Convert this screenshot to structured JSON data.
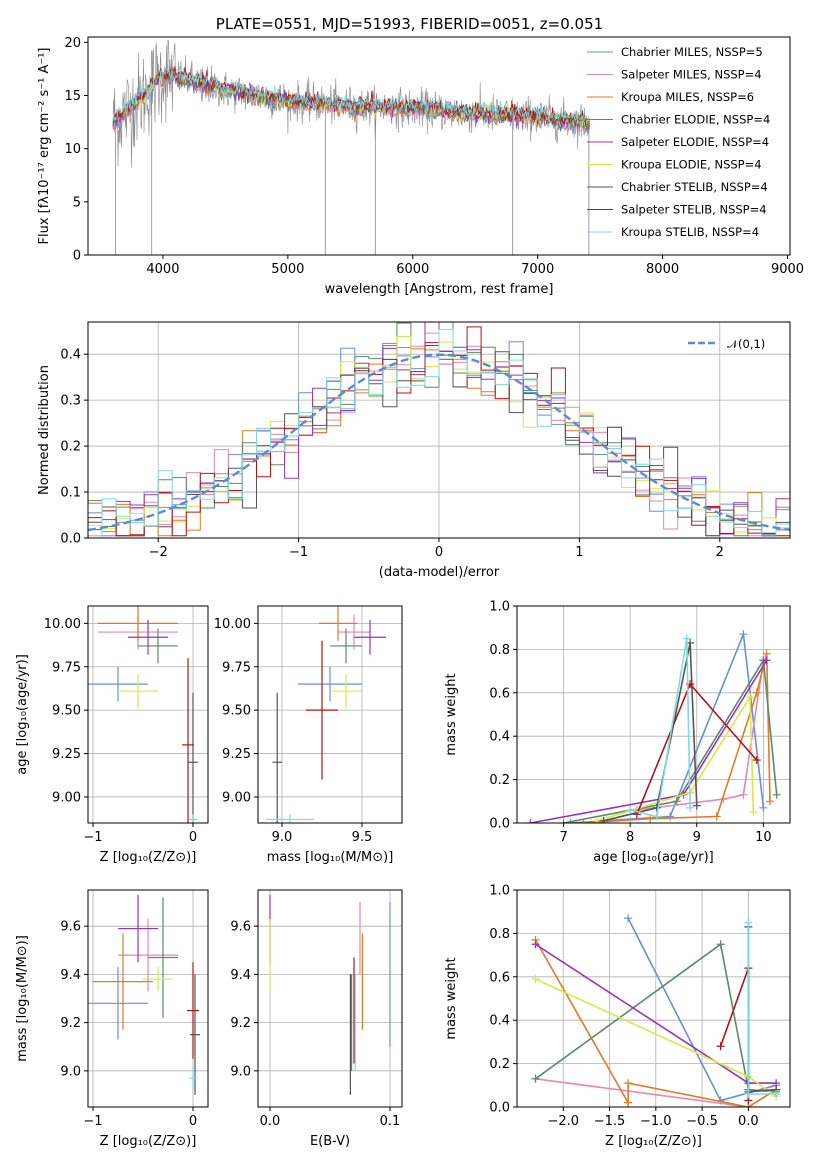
{
  "title": "PLATE=0551, MJD=51993, FIBERID=0051, z=0.051",
  "colors": {
    "Chabrier MILES": "#6a8fd6",
    "Salpeter MILES": "#e887b0",
    "Kroupa MILES": "#e07b27",
    "Chabrier ELODIE": "#5a8a6a",
    "Salpeter ELODIE": "#9933bb",
    "Kroupa ELODIE": "#d4e84a",
    "Chabrier STELIB": "#555555",
    "Salpeter STELIB": "#b01515",
    "Kroupa STELIB": "#7fd9e0",
    "data": "#888888",
    "normal": "#5b8bd6"
  },
  "chart_data": [
    {
      "id": "spectrum",
      "type": "line",
      "title": "PLATE=0551, MJD=51993, FIBERID=0051, z=0.051",
      "xlabel": "wavelength [Angstrom, rest frame]",
      "ylabel": "Flux [fλ10⁻¹⁷ erg cm⁻² s⁻¹ A⁻¹]",
      "xlim": [
        3400,
        9020
      ],
      "ylim": [
        0,
        20.5
      ],
      "xticks": [
        "4000",
        "5000",
        "6000",
        "7000",
        "8000",
        "9000"
      ],
      "yticks": [
        "0",
        "5",
        "10",
        "15",
        "20"
      ],
      "legend": [
        "Chabrier MILES, NSSP=5",
        "Salpeter MILES, NSSP=4",
        "Kroupa MILES, NSSP=6",
        "Chabrier ELODIE, NSSP=4",
        "Salpeter ELODIE, NSSP=4",
        "Kroupa ELODIE, NSSP=4",
        "Chabrier STELIB, NSSP=4",
        "Salpeter STELIB, NSSP=4",
        "Kroupa STELIB, NSSP=4"
      ],
      "legend_position": "top-right",
      "data_range": [
        3600,
        7420
      ],
      "continuum": {
        "x": [
          3600,
          3800,
          4000,
          4200,
          4500,
          5000,
          5500,
          6000,
          6500,
          7000,
          7420
        ],
        "y": [
          12.5,
          14.5,
          17.0,
          16.5,
          15.5,
          14.5,
          14.0,
          13.8,
          13.3,
          13.0,
          12.4
        ]
      },
      "grid": false
    },
    {
      "id": "residuals",
      "type": "histogram",
      "xlabel": "(data-model)/error",
      "ylabel": "Normed distribution",
      "xlim": [
        -2.5,
        2.5
      ],
      "ylim": [
        0,
        0.47
      ],
      "xticks": [
        "−2",
        "−1",
        "0",
        "1",
        "2"
      ],
      "yticks": [
        "0.0",
        "0.1",
        "0.2",
        "0.3",
        "0.4"
      ],
      "legend": [
        "𝒩(0,1)"
      ],
      "legend_position": "top-right",
      "grid": true,
      "bin_width": 0.1
    },
    {
      "id": "age-vs-Z",
      "type": "errorbar",
      "xlabel": "Z [log₁₀(Z/Z⊙)]",
      "ylabel": "age  [log₁₀(age/yr)]",
      "xlim": [
        -1.05,
        0.15
      ],
      "ylim": [
        8.85,
        10.1
      ],
      "xticks": [
        "−1",
        "0"
      ],
      "yticks": [
        "9.00",
        "9.25",
        "9.50",
        "9.75",
        "10.00"
      ],
      "grid": true,
      "points": [
        {
          "series": "Chabrier MILES",
          "x": -0.75,
          "xerr": 0.3,
          "y": 9.65,
          "yerr": 0.1
        },
        {
          "series": "Salpeter MILES",
          "x": -0.55,
          "xerr": 0.4,
          "y": 9.95,
          "yerr": 0.1
        },
        {
          "series": "Kroupa MILES",
          "x": -0.55,
          "xerr": 0.4,
          "y": 10.0,
          "yerr": 0.1
        },
        {
          "series": "Chabrier ELODIE",
          "x": -0.35,
          "xerr": 0.2,
          "y": 9.87,
          "yerr": 0.1
        },
        {
          "series": "Salpeter ELODIE",
          "x": -0.45,
          "xerr": 0.2,
          "y": 9.92,
          "yerr": 0.1
        },
        {
          "series": "Kroupa ELODIE",
          "x": -0.55,
          "xerr": 0.2,
          "y": 9.61,
          "yerr": 0.1
        },
        {
          "series": "Chabrier STELIB",
          "x": 0.0,
          "xerr": 0.05,
          "y": 9.2,
          "yerr": 0.4
        },
        {
          "series": "Salpeter STELIB",
          "x": -0.05,
          "xerr": 0.06,
          "y": 9.3,
          "yerr": 0.5
        },
        {
          "series": "Kroupa STELIB",
          "x": 0.0,
          "xerr": 0.04,
          "y": 8.87,
          "yerr": 0.03
        }
      ]
    },
    {
      "id": "age-vs-mass",
      "type": "errorbar",
      "xlabel": "mass [log₁₀(M/M⊙)]",
      "ylabel": "",
      "xlim": [
        8.85,
        9.75
      ],
      "ylim": [
        8.85,
        10.1
      ],
      "xticks": [
        "9.0",
        "9.5"
      ],
      "yticks": [
        "9.00",
        "9.25",
        "9.50",
        "9.75",
        "10.00"
      ],
      "grid": true,
      "points": [
        {
          "series": "Chabrier MILES",
          "x": 9.3,
          "xerr": 0.2,
          "y": 9.65,
          "yerr": 0.1
        },
        {
          "series": "Salpeter MILES",
          "x": 9.45,
          "xerr": 0.1,
          "y": 9.95,
          "yerr": 0.1
        },
        {
          "series": "Kroupa MILES",
          "x": 9.35,
          "xerr": 0.12,
          "y": 10.0,
          "yerr": 0.1
        },
        {
          "series": "Chabrier ELODIE",
          "x": 9.4,
          "xerr": 0.1,
          "y": 9.87,
          "yerr": 0.1
        },
        {
          "series": "Salpeter ELODIE",
          "x": 9.55,
          "xerr": 0.1,
          "y": 9.92,
          "yerr": 0.1
        },
        {
          "series": "Kroupa ELODIE",
          "x": 9.4,
          "xerr": 0.1,
          "y": 9.61,
          "yerr": 0.1
        },
        {
          "series": "Chabrier STELIB",
          "x": 8.97,
          "xerr": 0.03,
          "y": 9.2,
          "yerr": 0.4
        },
        {
          "series": "Salpeter STELIB",
          "x": 9.25,
          "xerr": 0.1,
          "y": 9.5,
          "yerr": 0.4
        },
        {
          "series": "Kroupa STELIB",
          "x": 9.05,
          "xerr": 0.15,
          "y": 8.87,
          "yerr": 0.03
        }
      ]
    },
    {
      "id": "weight-vs-age",
      "type": "line",
      "xlabel": "age  [log₁₀(age/yr)]",
      "ylabel": "mass weight",
      "xlim": [
        6.3,
        10.4
      ],
      "ylim": [
        0,
        1
      ],
      "xticks": [
        "7",
        "8",
        "9",
        "10"
      ],
      "yticks": [
        "0.0",
        "0.2",
        "0.4",
        "0.6",
        "0.8",
        "1.0"
      ],
      "grid": true,
      "series": [
        {
          "name": "Chabrier MILES",
          "x": [
            7.1,
            8.6,
            9.7,
            10.0
          ],
          "y": [
            0.0,
            0.03,
            0.87,
            0.07
          ]
        },
        {
          "name": "Salpeter MILES",
          "x": [
            8.1,
            9.4,
            9.7,
            10.0
          ],
          "y": [
            0.06,
            0.11,
            0.13,
            0.75
          ]
        },
        {
          "name": "Kroupa MILES",
          "x": [
            7.3,
            8.3,
            9.3,
            9.9,
            10.05,
            10.1
          ],
          "y": [
            0.0,
            0.02,
            0.03,
            0.6,
            0.78,
            0.1
          ]
        },
        {
          "name": "Chabrier ELODIE",
          "x": [
            7.0,
            8.7,
            10.0,
            10.2
          ],
          "y": [
            0.0,
            0.1,
            0.75,
            0.13
          ]
        },
        {
          "name": "Salpeter ELODIE",
          "x": [
            6.5,
            8.8,
            10.05
          ],
          "y": [
            0.0,
            0.13,
            0.75
          ]
        },
        {
          "name": "Kroupa ELODIE",
          "x": [
            7.5,
            8.9,
            9.8,
            9.85
          ],
          "y": [
            0.01,
            0.14,
            0.58,
            0.05
          ]
        },
        {
          "name": "Chabrier STELIB",
          "x": [
            7.6,
            8.4,
            8.9,
            9.0
          ],
          "y": [
            0.01,
            0.07,
            0.83,
            0.08
          ]
        },
        {
          "name": "Salpeter STELIB",
          "x": [
            8.1,
            8.9,
            9.9
          ],
          "y": [
            0.04,
            0.64,
            0.29
          ]
        },
        {
          "name": "Kroupa STELIB",
          "x": [
            8.0,
            8.4,
            8.85,
            8.9
          ],
          "y": [
            0.06,
            0.03,
            0.85,
            0.07
          ]
        }
      ]
    },
    {
      "id": "mass-vs-Z",
      "type": "errorbar",
      "xlabel": "Z [log₁₀(Z/Z⊙)]",
      "ylabel": "mass [log₁₀(M/M⊙)]",
      "xlim": [
        -1.05,
        0.15
      ],
      "ylim": [
        8.85,
        9.75
      ],
      "xticks": [
        "−1",
        "0"
      ],
      "yticks": [
        "9.0",
        "9.2",
        "9.4",
        "9.6"
      ],
      "grid": true,
      "points": [
        {
          "series": "Chabrier MILES",
          "x": -0.75,
          "xerr": 0.3,
          "y": 9.28,
          "yerr": 0.15
        },
        {
          "series": "Salpeter MILES",
          "x": -0.45,
          "xerr": 0.3,
          "y": 9.48,
          "yerr": 0.15
        },
        {
          "series": "Kroupa MILES",
          "x": -0.7,
          "xerr": 0.3,
          "y": 9.37,
          "yerr": 0.2
        },
        {
          "series": "Chabrier ELODIE",
          "x": -0.3,
          "xerr": 0.15,
          "y": 9.47,
          "yerr": 0.25
        },
        {
          "series": "Salpeter ELODIE",
          "x": -0.55,
          "xerr": 0.2,
          "y": 9.59,
          "yerr": 0.14
        },
        {
          "series": "Kroupa ELODIE",
          "x": -0.35,
          "xerr": 0.15,
          "y": 9.38,
          "yerr": 0.05
        },
        {
          "series": "Chabrier STELIB",
          "x": 0.02,
          "xerr": 0.05,
          "y": 9.15,
          "yerr": 0.25
        },
        {
          "series": "Salpeter STELIB",
          "x": 0.0,
          "xerr": 0.06,
          "y": 9.25,
          "yerr": 0.2
        },
        {
          "series": "Kroupa STELIB",
          "x": 0.0,
          "xerr": 0.04,
          "y": 8.97,
          "yerr": 0.05
        }
      ]
    },
    {
      "id": "mass-vs-ebv",
      "type": "errorbar",
      "xlabel": "E(B-V)",
      "ylabel": "",
      "xlim": [
        -0.01,
        0.11
      ],
      "ylim": [
        8.85,
        9.75
      ],
      "xticks": [
        "0.0",
        "0.1"
      ],
      "yticks": [
        "9.0",
        "9.2",
        "9.4",
        "9.6"
      ],
      "grid": true,
      "points": [
        {
          "series": "Chabrier MILES",
          "x": 0.1,
          "xerr": 0,
          "y": 9.4,
          "yerr": 0.3
        },
        {
          "series": "Salpeter MILES",
          "x": 0.075,
          "xerr": 0,
          "y": 9.55,
          "yerr": 0.15
        },
        {
          "series": "Kroupa MILES",
          "x": 0.077,
          "xerr": 0,
          "y": 9.37,
          "yerr": 0.2
        },
        {
          "series": "Chabrier ELODIE",
          "x": 0.068,
          "xerr": 0,
          "y": 9.2,
          "yerr": 0.2
        },
        {
          "series": "Salpeter ELODIE",
          "x": 0.0,
          "xerr": 0,
          "y": 9.59,
          "yerr": 0.14
        },
        {
          "series": "Kroupa ELODIE",
          "x": 0.0,
          "xerr": 0,
          "y": 9.48,
          "yerr": 0.15
        },
        {
          "series": "Chabrier STELIB",
          "x": 0.067,
          "xerr": 0,
          "y": 9.15,
          "yerr": 0.25
        },
        {
          "series": "Salpeter STELIB",
          "x": 0.07,
          "xerr": 0,
          "y": 9.25,
          "yerr": 0.22
        },
        {
          "series": "Kroupa STELIB",
          "x": 0.071,
          "xerr": 0,
          "y": 9.2,
          "yerr": 0.2
        }
      ]
    },
    {
      "id": "weight-vs-Z",
      "type": "line",
      "xlabel": "Z [log₁₀(Z/Z⊙)]",
      "ylabel": "mass weight",
      "xlim": [
        -2.5,
        0.45
      ],
      "ylim": [
        0,
        1
      ],
      "xticks": [
        "−2.0",
        "−1.5",
        "−1.0",
        "−0.5",
        "0.0"
      ],
      "yticks": [
        "0.0",
        "0.2",
        "0.4",
        "0.6",
        "0.8",
        "1.0"
      ],
      "grid": true,
      "series": [
        {
          "name": "Chabrier MILES",
          "x": [
            -1.3,
            -0.3,
            0.3
          ],
          "y": [
            0.87,
            0.03,
            0.1
          ]
        },
        {
          "name": "Salpeter MILES",
          "x": [
            -2.3,
            0.0,
            0.3
          ],
          "y": [
            0.13,
            0.0,
            0.08
          ]
        },
        {
          "name": "Kroupa MILES",
          "x": [
            -2.3,
            -1.3,
            -1.3,
            0.0,
            0.3,
            0.3
          ],
          "y": [
            0.77,
            0.02,
            0.11,
            0.0,
            0.08,
            0.07
          ]
        },
        {
          "name": "Chabrier ELODIE",
          "x": [
            -2.3,
            -0.3,
            0.0,
            0.3
          ],
          "y": [
            0.13,
            0.75,
            0.08,
            0.07
          ]
        },
        {
          "name": "Salpeter ELODIE",
          "x": [
            -2.3,
            0.0,
            0.3
          ],
          "y": [
            0.75,
            0.11,
            0.11
          ]
        },
        {
          "name": "Kroupa ELODIE",
          "x": [
            -2.3,
            0.0,
            0.3
          ],
          "y": [
            0.59,
            0.14,
            0.05
          ]
        },
        {
          "name": "Chabrier STELIB",
          "x": [
            0.0,
            0.0,
            0.3
          ],
          "y": [
            0.83,
            0.07,
            0.08
          ]
        },
        {
          "name": "Salpeter STELIB",
          "x": [
            -0.3,
            0.0,
            0.0
          ],
          "y": [
            0.28,
            0.64,
            0.03
          ]
        },
        {
          "name": "Kroupa STELIB",
          "x": [
            0.0,
            0.0,
            0.3
          ],
          "y": [
            0.85,
            0.06,
            0.06
          ]
        }
      ]
    }
  ]
}
